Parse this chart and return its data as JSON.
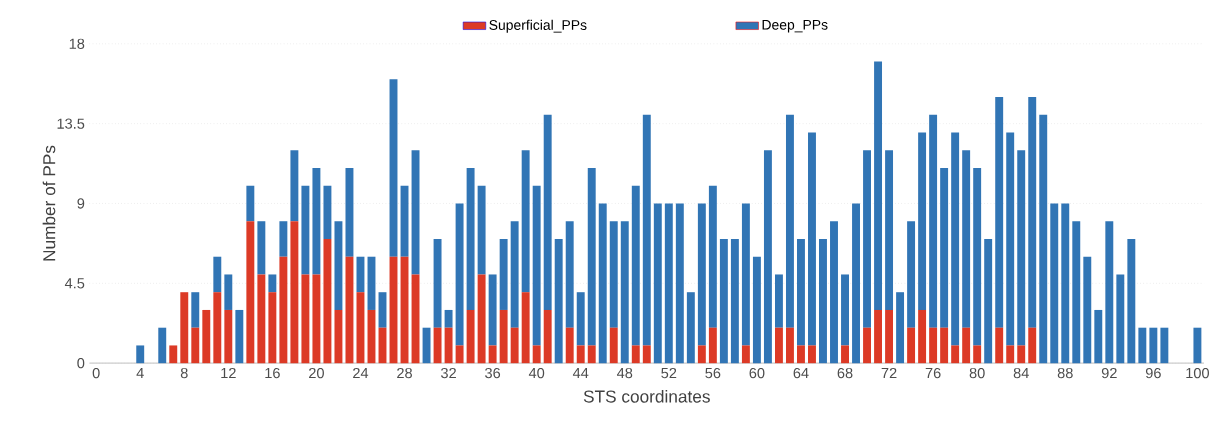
{
  "chart_data": {
    "type": "bar",
    "stacked": true,
    "xlabel": "STS coordinates",
    "ylabel": "Number of PPs",
    "x": [
      0,
      1,
      2,
      3,
      4,
      5,
      6,
      7,
      8,
      9,
      10,
      11,
      12,
      13,
      14,
      15,
      16,
      17,
      18,
      19,
      20,
      21,
      22,
      23,
      24,
      25,
      26,
      27,
      28,
      29,
      30,
      31,
      32,
      33,
      34,
      35,
      36,
      37,
      38,
      39,
      40,
      41,
      42,
      43,
      44,
      45,
      46,
      47,
      48,
      49,
      50,
      51,
      52,
      53,
      54,
      55,
      56,
      57,
      58,
      59,
      60,
      61,
      62,
      63,
      64,
      65,
      66,
      67,
      68,
      69,
      70,
      71,
      72,
      73,
      74,
      75,
      76,
      77,
      78,
      79,
      80,
      81,
      82,
      83,
      84,
      85,
      86,
      87,
      88,
      89,
      90,
      91,
      92,
      93,
      94,
      95,
      96,
      97,
      98,
      99,
      100
    ],
    "series": [
      {
        "name": "Superficial_PPs",
        "color": "#dc3a26",
        "values": [
          0,
          0,
          0,
          0,
          0,
          0,
          0,
          1,
          4,
          2,
          3,
          4,
          3,
          0,
          8,
          5,
          4,
          6,
          8,
          5,
          5,
          7,
          3,
          6,
          4,
          3,
          2,
          6,
          6,
          5,
          0,
          2,
          2,
          1,
          3,
          5,
          1,
          3,
          2,
          4,
          1,
          3,
          0,
          2,
          1,
          1,
          0,
          2,
          0,
          1,
          1,
          0,
          0,
          0,
          0,
          1,
          2,
          0,
          0,
          1,
          0,
          0,
          2,
          2,
          1,
          1,
          0,
          0,
          1,
          0,
          2,
          3,
          3,
          0,
          2,
          3,
          2,
          2,
          1,
          2,
          1,
          0,
          2,
          1,
          1,
          2,
          0,
          0,
          0,
          0,
          0,
          0,
          0,
          0,
          0,
          0,
          0,
          0,
          0,
          0,
          0
        ]
      },
      {
        "name": "Deep_PPs",
        "color": "#3175b5",
        "values": [
          0,
          0,
          0,
          0,
          1,
          0,
          2,
          0,
          0,
          2,
          0,
          2,
          2,
          3,
          2,
          3,
          1,
          2,
          4,
          5,
          6,
          3,
          5,
          5,
          2,
          3,
          2,
          10,
          4,
          7,
          2,
          5,
          1,
          8,
          8,
          5,
          4,
          4,
          6,
          8,
          9,
          11,
          7,
          6,
          3,
          10,
          9,
          6,
          8,
          9,
          13,
          9,
          9,
          9,
          4,
          8,
          8,
          7,
          7,
          8,
          6,
          12,
          3,
          12,
          6,
          12,
          7,
          8,
          4,
          9,
          10,
          14,
          9,
          4,
          6,
          10,
          12,
          9,
          12,
          10,
          10,
          7,
          13,
          12,
          11,
          13,
          14,
          9,
          9,
          8,
          6,
          3,
          8,
          5,
          7,
          2,
          2,
          2,
          0,
          0,
          2
        ]
      }
    ],
    "xlim": [
      -0.6,
      100.6
    ],
    "xticks": [
      0,
      4,
      8,
      12,
      16,
      20,
      24,
      28,
      32,
      36,
      40,
      44,
      48,
      52,
      56,
      60,
      64,
      68,
      72,
      76,
      80,
      84,
      88,
      92,
      96,
      100
    ],
    "ylim": [
      0,
      18
    ],
    "yticks": [
      0,
      4.5,
      9,
      13.5,
      18
    ],
    "grid": "y",
    "legend": "top"
  }
}
